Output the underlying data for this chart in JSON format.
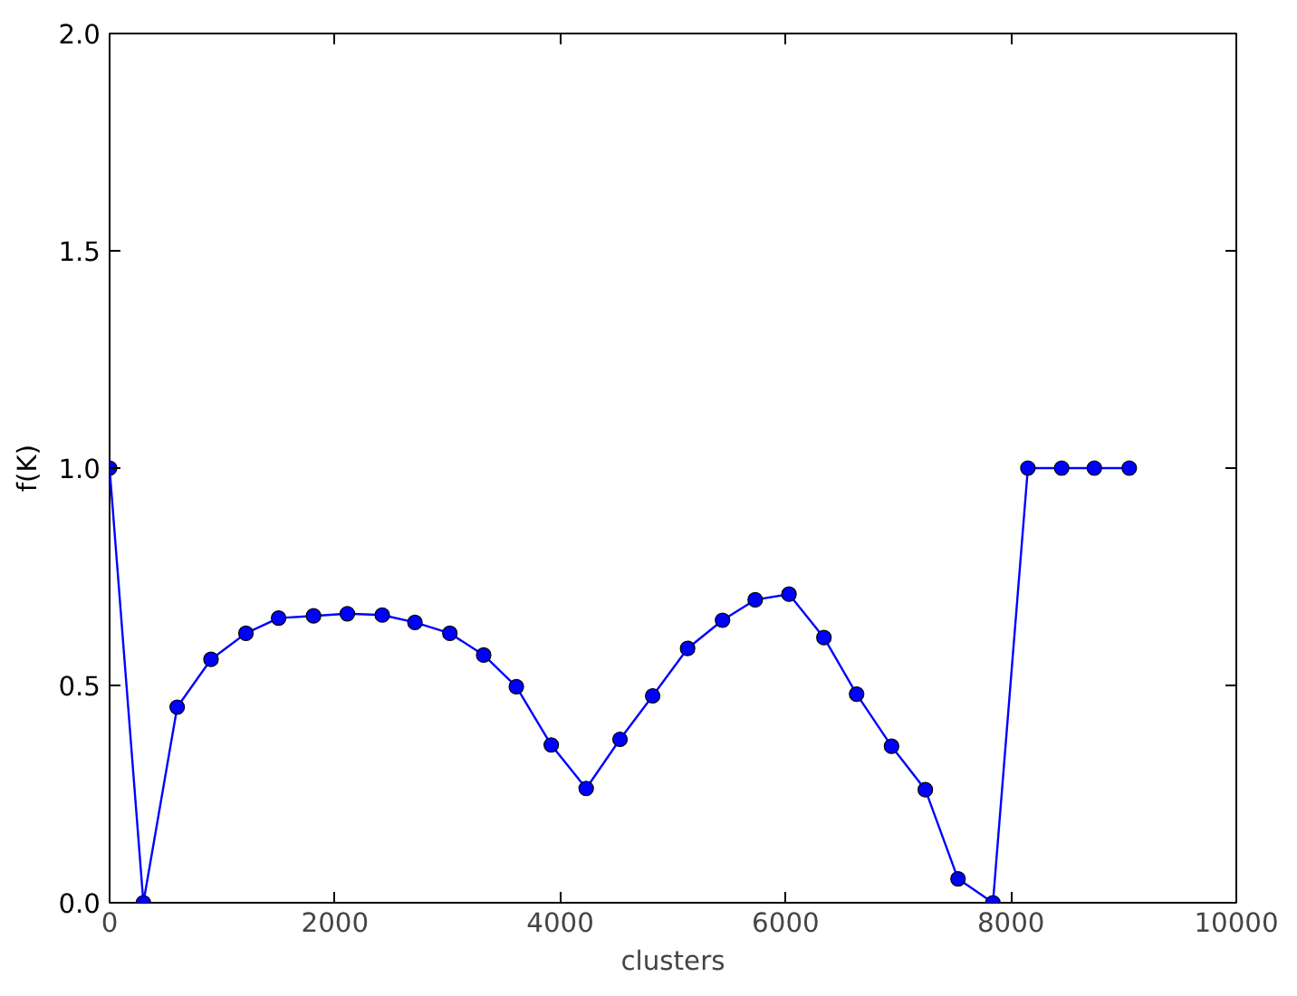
{
  "chart_data": {
    "type": "line",
    "xlabel": "clusters",
    "ylabel": "f(K)",
    "x": [
      0,
      300,
      600,
      900,
      1210,
      1500,
      1810,
      2110,
      2420,
      2710,
      3020,
      3320,
      3610,
      3920,
      4230,
      4530,
      4820,
      5130,
      5440,
      5730,
      6030,
      6340,
      6630,
      6940,
      7240,
      7530,
      7840,
      8150,
      8450,
      8740,
      9050
    ],
    "series": [
      {
        "color": "#0000ff",
        "values": [
          1.0,
          0.0,
          0.45,
          0.56,
          0.62,
          0.655,
          0.66,
          0.665,
          0.662,
          0.645,
          0.62,
          0.57,
          0.497,
          0.363,
          0.263,
          0.376,
          0.476,
          0.585,
          0.65,
          0.697,
          0.71,
          0.61,
          0.48,
          0.36,
          0.26,
          0.055,
          0.0,
          1.0,
          1.0,
          1.0,
          1.0
        ]
      }
    ],
    "xlim": [
      0,
      10000
    ],
    "xticks": [
      0,
      2000,
      4000,
      6000,
      8000,
      10000
    ],
    "ylim": [
      0,
      2.0
    ],
    "yticks": [
      {
        "value": 0,
        "label": "0.0"
      },
      {
        "value": 0.5,
        "label": "0.5"
      },
      {
        "value": 1.0,
        "label": "1.0"
      },
      {
        "value": 1.5,
        "label": "1.5"
      },
      {
        "value": 2.0,
        "label": "2.0"
      }
    ],
    "grid": false,
    "marker": "circle",
    "line_style": "solid"
  }
}
